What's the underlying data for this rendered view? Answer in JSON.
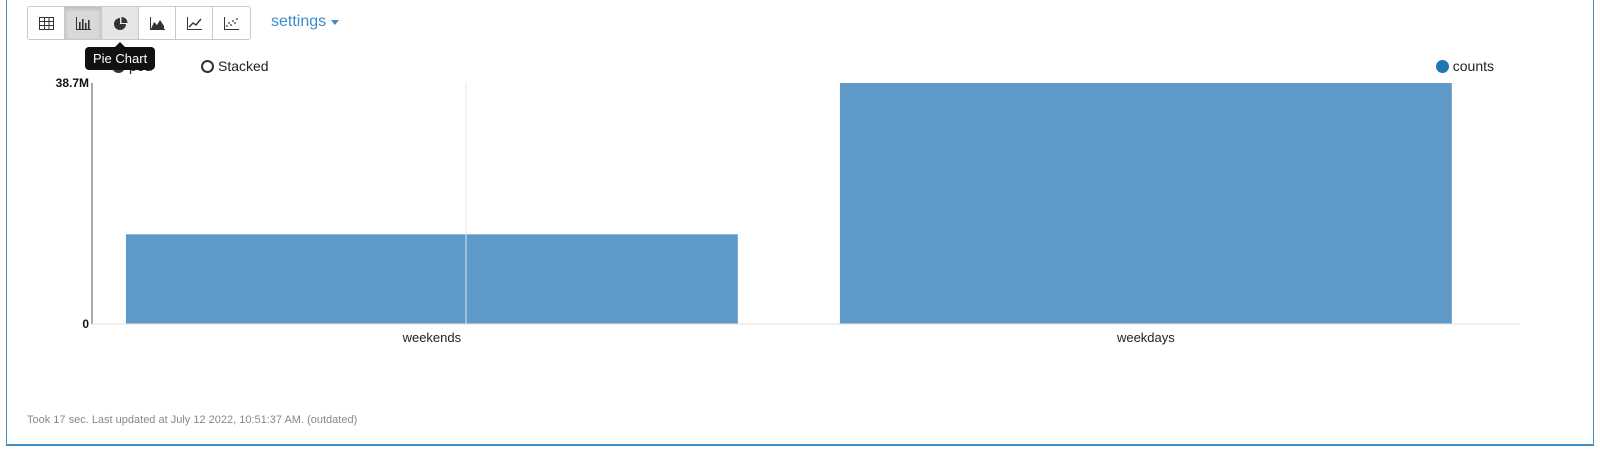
{
  "toolbar": {
    "buttons": [
      {
        "name": "table-view-button",
        "icon": "table-icon",
        "active": false
      },
      {
        "name": "bar-chart-button",
        "icon": "bar-chart-icon",
        "active": true
      },
      {
        "name": "pie-chart-button",
        "icon": "pie-chart-icon",
        "active": false
      },
      {
        "name": "area-chart-button",
        "icon": "area-chart-icon",
        "active": false
      },
      {
        "name": "line-chart-button",
        "icon": "line-chart-icon",
        "active": false
      },
      {
        "name": "scatter-chart-button",
        "icon": "scatter-chart-icon",
        "active": false
      }
    ],
    "settings_label": "settings"
  },
  "tooltip": {
    "text": "Pie Chart"
  },
  "options": {
    "grouped_label": "ped",
    "stacked_label": "Stacked"
  },
  "legend": {
    "label": "counts",
    "color": "#1f77b4"
  },
  "bar_color": "#5f99c7",
  "footer": {
    "text": "Took 17 sec. Last updated at July 12 2022, 10:51:37 AM. (outdated)"
  },
  "chart_data": {
    "type": "bar",
    "categories": [
      "weekends",
      "weekdays"
    ],
    "series": [
      {
        "name": "counts",
        "values": [
          14400000,
          38700000
        ]
      }
    ],
    "ylim": [
      0,
      38700000
    ],
    "ytick_labels": [
      "0",
      "38.7M"
    ],
    "legend_position": "top-right",
    "grid": false
  }
}
